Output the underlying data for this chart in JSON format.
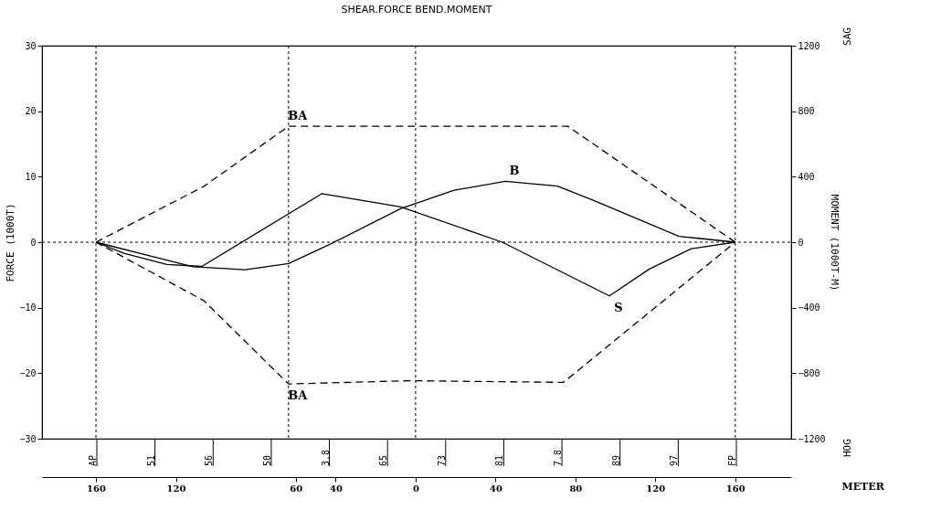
{
  "chart_data": {
    "type": "line",
    "title": "SHEAR.FORCE   BEND.MOMENT",
    "xlabel": "METER",
    "ylabel": "FORCE (1000T)",
    "y2label": "MOMENT (1000T-M)",
    "xlim": [
      -187,
      188
    ],
    "xticks": [
      {
        "value": -160,
        "label": "160"
      },
      {
        "value": -120,
        "label": "120"
      },
      {
        "value": -60,
        "label": "60"
      },
      {
        "value": -40,
        "label": "40"
      },
      0,
      40,
      80,
      120,
      160
    ],
    "ylim": [
      -30,
      30
    ],
    "yticks": [
      -30,
      -20,
      -10,
      0,
      10,
      20,
      30
    ],
    "y2lim": [
      -1200,
      1200
    ],
    "y2ticks": [
      -1200,
      -800,
      -400,
      0,
      400,
      800,
      1200
    ],
    "grid": false,
    "marker": "none",
    "series": [
      {
        "name": "S",
        "color": "#000000",
        "line_style": "solid",
        "x": [
          -160,
          -146,
          -124.5,
          -107,
          -47,
          -7.5,
          43.4,
          97,
          117,
          138,
          160
        ],
        "values": [
          0,
          -1.7,
          -3.4,
          -3.7,
          7.4,
          5.4,
          0,
          -8.2,
          -4.1,
          -1.0,
          0
        ]
      },
      {
        "name": "B",
        "color": "#000000",
        "line_style": "solid",
        "axis": "y2",
        "x": [
          -160,
          -131.8,
          -111.4,
          -85.3,
          -63.6,
          -43.2,
          -7.5,
          18.9,
          44.9,
          71,
          89.2,
          131.8,
          160
        ],
        "values": [
          0,
          -87,
          -150,
          -168,
          -130,
          -15,
          204,
          316,
          372,
          342,
          255,
          36,
          0
        ]
      },
      {
        "name": "BA",
        "color": "#000000",
        "line_style": "dashed",
        "axis": "y2",
        "x": [
          -160,
          -106,
          -63.6,
          76.2,
          160
        ],
        "values": [
          0,
          341,
          708,
          708,
          0
        ]
      },
      {
        "name": "BA",
        "color": "#000000",
        "line_style": "dashed",
        "axis": "y2",
        "x": [
          -160,
          -106,
          -63.6,
          -2.8,
          74,
          160
        ],
        "values": [
          0,
          -357,
          -866,
          -846,
          -856,
          0
        ]
      }
    ],
    "ref_lines": [
      {
        "axis": "x",
        "value": -160,
        "line_style": "dotted"
      },
      {
        "axis": "x",
        "value": -63.6,
        "line_style": "dotted"
      },
      {
        "axis": "x",
        "value": 0,
        "line_style": "dotted"
      },
      {
        "axis": "x",
        "value": 160,
        "line_style": "dotted"
      },
      {
        "axis": "y",
        "value": 0,
        "line_style": "dotted"
      }
    ],
    "annotations": [
      "SAG",
      "HOG",
      "AP",
      "51",
      "56",
      "50",
      "3.8",
      "65",
      "73",
      "81",
      "7.8",
      "89",
      "97",
      "FP"
    ]
  }
}
